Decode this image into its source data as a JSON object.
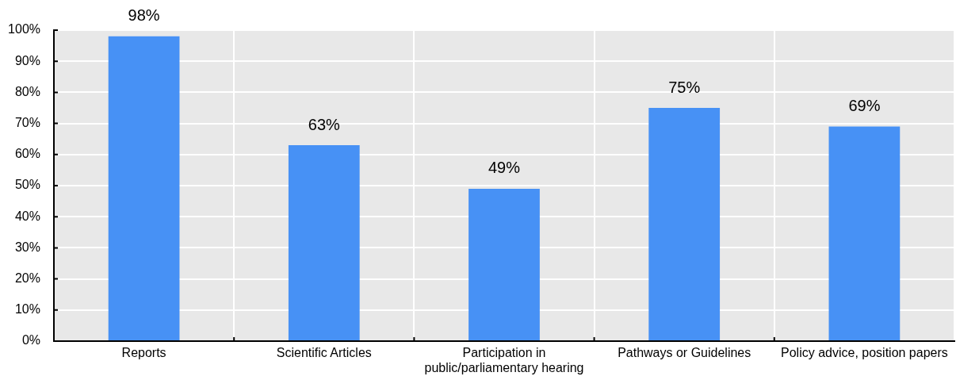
{
  "chart_data": {
    "type": "bar",
    "categories": [
      "Reports",
      "Scientific Articles",
      "Participation in public/parliamentary hearing",
      "Pathways or Guidelines",
      "Policy advice, position papers"
    ],
    "values": [
      98,
      63,
      49,
      75,
      69
    ],
    "color": "#4791f5",
    "value_labels": [
      "98%",
      "63%",
      "49%",
      "75%",
      "69%"
    ],
    "ylim": [
      0,
      100
    ],
    "yticks": [
      {
        "value": 0,
        "label": "0%"
      },
      {
        "value": 10,
        "label": "10%"
      },
      {
        "value": 20,
        "label": "20%"
      },
      {
        "value": 30,
        "label": "30%"
      },
      {
        "value": 40,
        "label": "40%"
      },
      {
        "value": 50,
        "label": "50%"
      },
      {
        "value": 60,
        "label": "60%"
      },
      {
        "value": 70,
        "label": "70%"
      },
      {
        "value": 80,
        "label": "80%"
      },
      {
        "value": 90,
        "label": "90%"
      },
      {
        "value": 100,
        "label": "100%"
      }
    ],
    "grid": true
  }
}
